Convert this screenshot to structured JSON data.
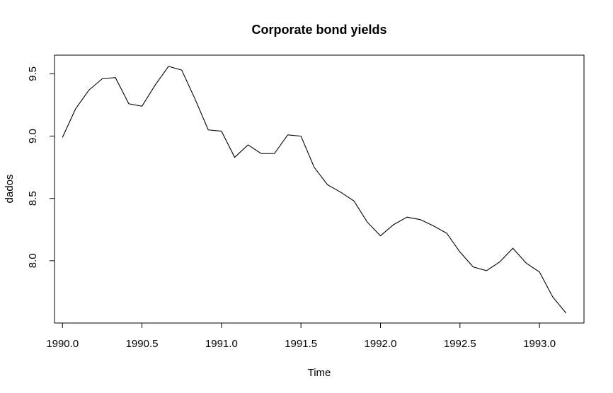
{
  "chart_data": {
    "type": "line",
    "title": "Corporate bond yields",
    "xlabel": "Time",
    "ylabel": "dados",
    "xlim": [
      1989.95,
      1993.28
    ],
    "ylim": [
      7.5,
      9.65
    ],
    "xticks": [
      "1990.0",
      "1990.5",
      "1991.0",
      "1991.5",
      "1992.0",
      "1992.5",
      "1993.0"
    ],
    "xtick_values": [
      1990.0,
      1990.5,
      1991.0,
      1991.5,
      1992.0,
      1992.5,
      1993.0
    ],
    "yticks": [
      "8.0",
      "8.5",
      "9.0",
      "9.5"
    ],
    "ytick_values": [
      8.0,
      8.5,
      9.0,
      9.5
    ],
    "grid": false,
    "frequency": 12,
    "start": 1990.0,
    "x": [
      1990.0,
      1990.083,
      1990.167,
      1990.25,
      1990.333,
      1990.417,
      1990.5,
      1990.583,
      1990.667,
      1990.75,
      1990.833,
      1990.917,
      1991.0,
      1991.083,
      1991.167,
      1991.25,
      1991.333,
      1991.417,
      1991.5,
      1991.583,
      1991.667,
      1991.75,
      1991.833,
      1991.917,
      1992.0,
      1992.083,
      1992.167,
      1992.25,
      1992.333,
      1992.417,
      1992.5,
      1992.583,
      1992.667,
      1992.75,
      1992.833,
      1992.917,
      1993.0,
      1993.083,
      1993.167
    ],
    "series": [
      {
        "values": [
          8.99,
          9.22,
          9.37,
          9.46,
          9.47,
          9.26,
          9.24,
          9.41,
          9.56,
          9.53,
          9.3,
          9.05,
          9.04,
          8.83,
          8.93,
          8.86,
          8.86,
          9.01,
          9.0,
          8.75,
          8.61,
          8.55,
          8.48,
          8.31,
          8.2,
          8.29,
          8.35,
          8.33,
          8.28,
          8.22,
          8.07,
          7.95,
          7.92,
          7.99,
          8.1,
          7.98,
          7.91,
          7.71,
          7.58
        ]
      }
    ]
  }
}
